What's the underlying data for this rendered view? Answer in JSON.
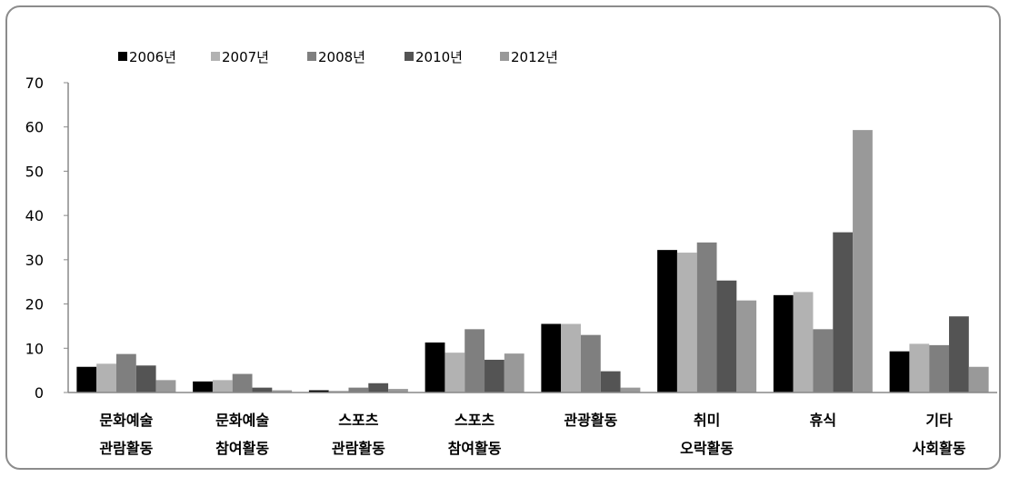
{
  "chart_data": {
    "type": "bar",
    "categories": [
      [
        "문화예술",
        "관람활동"
      ],
      [
        "문화예술",
        "참여활동"
      ],
      [
        "스포츠",
        "관람활동"
      ],
      [
        "스포츠",
        "참여활동"
      ],
      [
        "관광활동"
      ],
      [
        "취미",
        "오락활동"
      ],
      [
        "휴식"
      ],
      [
        "기타",
        "사회활동"
      ]
    ],
    "series": [
      {
        "name": "2006년",
        "color": "#000000",
        "values": [
          5.8,
          2.5,
          0.5,
          11.3,
          15.5,
          32.2,
          22.0,
          9.3
        ]
      },
      {
        "name": "2007년",
        "color": "#b2b2b2",
        "values": [
          6.5,
          2.8,
          0.4,
          9.0,
          15.5,
          31.6,
          22.7,
          11.0
        ]
      },
      {
        "name": "2008년",
        "color": "#7f7f7f",
        "values": [
          8.7,
          4.2,
          1.1,
          14.3,
          13.0,
          33.9,
          14.3,
          10.7
        ]
      },
      {
        "name": "2010년",
        "color": "#545454",
        "values": [
          6.1,
          1.1,
          2.1,
          7.4,
          4.8,
          25.3,
          36.2,
          17.2
        ]
      },
      {
        "name": "2012년",
        "color": "#999999",
        "values": [
          2.8,
          0.5,
          0.8,
          8.8,
          1.1,
          20.8,
          59.3,
          5.8
        ]
      }
    ],
    "y_ticks": [
      "0",
      "10",
      "20",
      "30",
      "40",
      "50",
      "60",
      "70"
    ],
    "ylim": [
      0,
      70
    ],
    "legend_position": "top-left",
    "grid": false
  }
}
